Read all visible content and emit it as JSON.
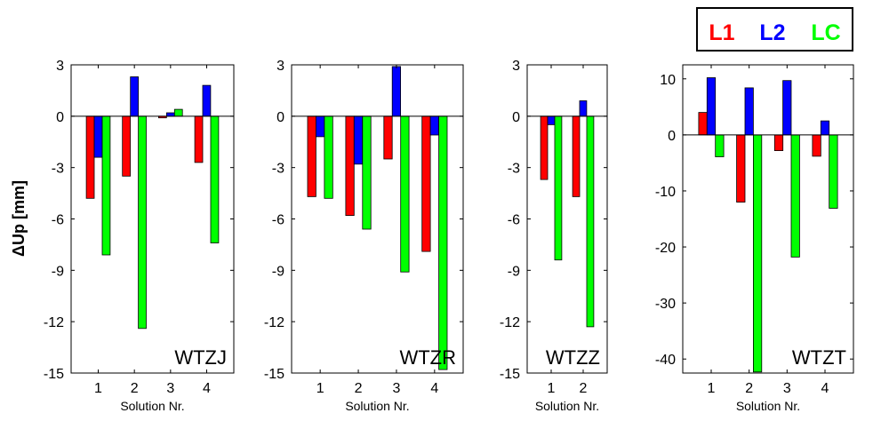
{
  "ylabel": "ΔUp [mm]",
  "legend": {
    "placement": "top-right",
    "entries": [
      {
        "label": "L1",
        "color": "#ff0000"
      },
      {
        "label": "L2",
        "color": "#0000ff"
      },
      {
        "label": "LC",
        "color": "#00ff00"
      }
    ]
  },
  "chart_data": [
    {
      "type": "bar",
      "title": "WTZJ",
      "xlabel": "Solution Nr.",
      "categories": [
        "1",
        "2",
        "3",
        "4"
      ],
      "ylim": [
        -15,
        3
      ],
      "yticks": [
        3,
        0,
        -3,
        -6,
        -9,
        -12,
        -15
      ],
      "series": [
        {
          "name": "L1",
          "color": "#ff0000",
          "values": [
            -4.8,
            -3.5,
            -0.1,
            -2.7
          ]
        },
        {
          "name": "L2",
          "color": "#0000ff",
          "values": [
            -2.4,
            2.3,
            0.2,
            1.8
          ]
        },
        {
          "name": "LC",
          "color": "#00ff00",
          "values": [
            -8.1,
            -12.4,
            0.4,
            -7.4
          ]
        }
      ]
    },
    {
      "type": "bar",
      "title": "WTZR",
      "xlabel": "Solution Nr.",
      "categories": [
        "1",
        "2",
        "3",
        "4"
      ],
      "ylim": [
        -15,
        3
      ],
      "yticks": [
        3,
        0,
        -3,
        -6,
        -9,
        -12,
        -15
      ],
      "series": [
        {
          "name": "L1",
          "color": "#ff0000",
          "values": [
            -4.7,
            -5.8,
            -2.5,
            -7.9
          ]
        },
        {
          "name": "L2",
          "color": "#0000ff",
          "values": [
            -1.2,
            -2.8,
            2.9,
            -1.1
          ]
        },
        {
          "name": "LC",
          "color": "#00ff00",
          "values": [
            -4.8,
            -6.6,
            -9.1,
            -14.8
          ]
        }
      ]
    },
    {
      "type": "bar",
      "title": "WTZZ",
      "xlabel": "Solution Nr.",
      "categories": [
        "1",
        "2"
      ],
      "ylim": [
        -15,
        3
      ],
      "yticks": [
        3,
        0,
        -3,
        -6,
        -9,
        -12,
        -15
      ],
      "series": [
        {
          "name": "L1",
          "color": "#ff0000",
          "values": [
            -3.7,
            -4.7
          ]
        },
        {
          "name": "L2",
          "color": "#0000ff",
          "values": [
            -0.5,
            0.9
          ]
        },
        {
          "name": "LC",
          "color": "#00ff00",
          "values": [
            -8.4,
            -12.3
          ]
        }
      ]
    },
    {
      "type": "bar",
      "title": "WTZT",
      "xlabel": "Solution Nr.",
      "categories": [
        "1",
        "2",
        "3",
        "4"
      ],
      "ylim": [
        -42.5,
        12.5
      ],
      "yticks": [
        10,
        0,
        -10,
        -20,
        -30,
        -40
      ],
      "series": [
        {
          "name": "L1",
          "color": "#ff0000",
          "values": [
            4.0,
            -12.0,
            -2.8,
            -3.8
          ]
        },
        {
          "name": "L2",
          "color": "#0000ff",
          "values": [
            10.2,
            8.4,
            9.7,
            2.5
          ]
        },
        {
          "name": "LC",
          "color": "#00ff00",
          "values": [
            -3.9,
            -42.3,
            -21.8,
            -13.1
          ]
        }
      ]
    }
  ]
}
